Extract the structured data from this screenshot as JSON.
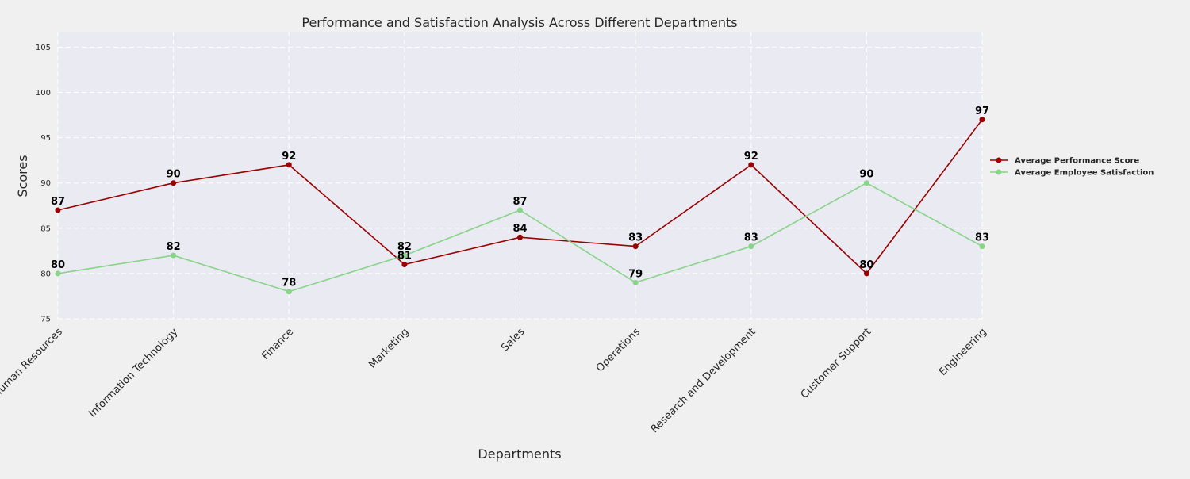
{
  "chart_data": {
    "type": "line",
    "title": "Performance and Satisfaction Analysis Across Different Departments",
    "xlabel": "Departments",
    "ylabel": "Scores",
    "categories": [
      "Human Resources",
      "Information Technology",
      "Finance",
      "Marketing",
      "Sales",
      "Operations",
      "Research and Development",
      "Customer Support",
      "Engineering"
    ],
    "ylim": [
      75,
      106.7
    ],
    "yticks": [
      75,
      80,
      85,
      90,
      95,
      100,
      105
    ],
    "grid": true,
    "legend_position": "right",
    "series": [
      {
        "name": "Average Performance Score",
        "color": "#990000",
        "values": [
          87,
          90,
          92,
          81,
          84,
          83,
          92,
          80,
          97
        ]
      },
      {
        "name": "Average Employee Satisfaction",
        "color": "#88d488",
        "values": [
          80,
          82,
          78,
          82,
          87,
          79,
          83,
          90,
          83
        ]
      }
    ]
  }
}
